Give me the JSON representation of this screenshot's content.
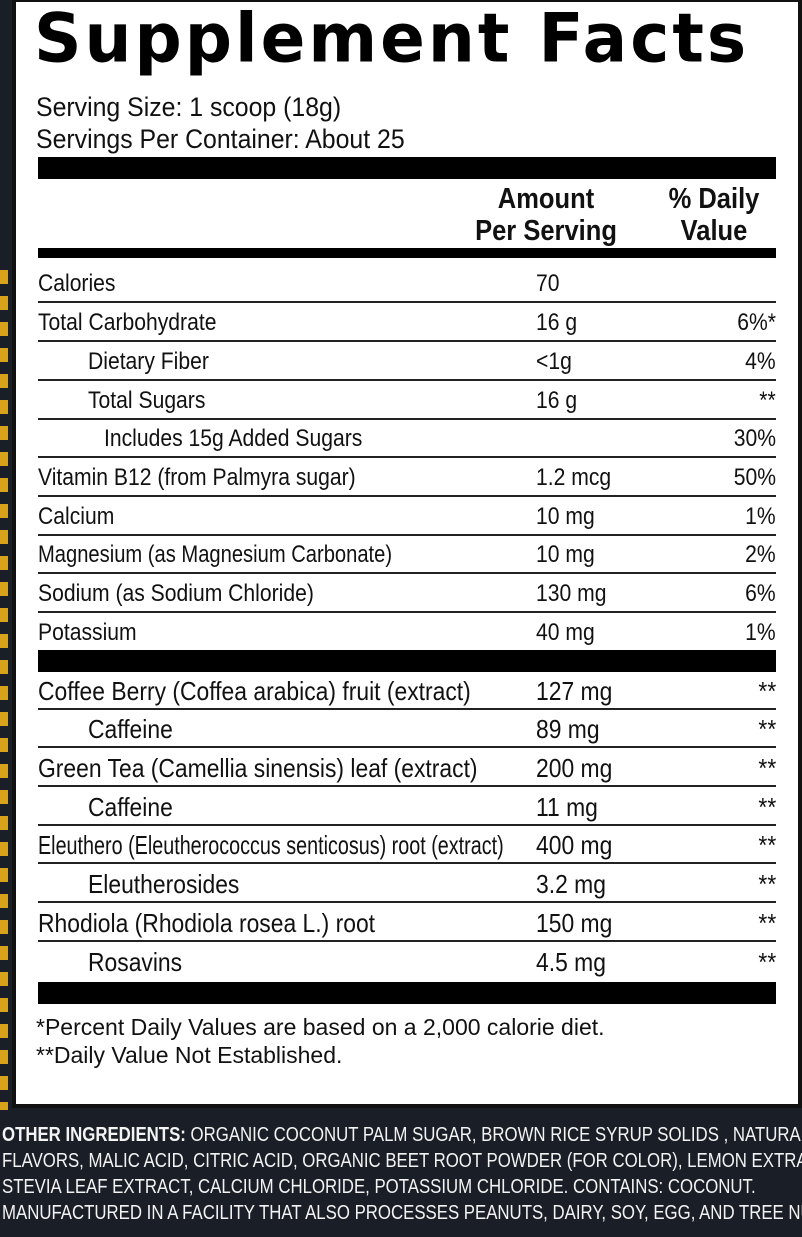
{
  "title": "Supplement Facts",
  "serving_size": "Serving Size: 1 scoop (18g)",
  "servings_per_container": "Servings Per Container: About 25",
  "header": {
    "amount_line1": "Amount",
    "amount_line2": "Per Serving",
    "dv_line1": "% Daily",
    "dv_line2": "Value"
  },
  "nutrients": [
    {
      "name": "Calories",
      "amount": "70",
      "dv": ""
    },
    {
      "name": "Total Carbohydrate",
      "amount": "16 g",
      "dv": "6%*"
    },
    {
      "name": "Dietary  Fiber",
      "amount": "<1g",
      "dv": "4%"
    },
    {
      "name": "Total Sugars",
      "amount": "16 g",
      "dv": "**"
    },
    {
      "name": "Includes 15g Added Sugars",
      "amount": "",
      "dv": "30%"
    },
    {
      "name": "Vitamin B12 (from Palmyra sugar)",
      "amount": "1.2 mcg",
      "dv": "50%"
    },
    {
      "name": "Calcium",
      "amount": "10 mg",
      "dv": "1%"
    },
    {
      "name": "Magnesium (as Magnesium Carbonate)",
      "amount": "10 mg",
      "dv": "2%"
    },
    {
      "name": "Sodium  (as Sodium Chloride)",
      "amount": "130 mg",
      "dv": "6%"
    },
    {
      "name": "Potassium",
      "amount": "40 mg",
      "dv": "1%"
    }
  ],
  "botanicals": [
    {
      "name": "Coffee Berry (Coffea arabica) fruit (extract)",
      "amount": "127 mg",
      "dv": "**"
    },
    {
      "name": "Caffeine",
      "amount": "89 mg",
      "dv": "**"
    },
    {
      "name": "Green Tea (Camellia sinensis) leaf (extract)",
      "amount": "200 mg",
      "dv": "**"
    },
    {
      "name": "Caffeine",
      "amount": "11 mg",
      "dv": "**"
    },
    {
      "name": "Eleuthero (Eleutherococcus senticosus) root (extract)",
      "amount": "400 mg",
      "dv": "**"
    },
    {
      "name": "Eleutherosides",
      "amount": "3.2 mg",
      "dv": "**"
    },
    {
      "name": "Rhodiola (Rhodiola rosea L.) root",
      "amount": "150 mg",
      "dv": "**"
    },
    {
      "name": "Rosavins",
      "amount": "4.5 mg",
      "dv": "**"
    }
  ],
  "footnote1": "*Percent Daily Values are based on a 2,000 calorie diet.",
  "footnote2": "**Daily Value Not Established.",
  "other_ingredients": {
    "label": "OTHER INGREDIENTS:",
    "line1": " ORGANIC COCONUT PALM SUGAR, BROWN RICE SYRUP SOLIDS , NATURAL",
    "line2": "FLAVORS, MALIC ACID,  CITRIC ACID, ORGANIC BEET ROOT POWDER (FOR COLOR), LEMON EXTRACT,",
    "line3": "STEVIA LEAF EXTRACT, CALCIUM CHLORIDE, POTASSIUM CHLORIDE. CONTAINS: COCONUT.",
    "line4": "MANUFACTURED IN A FACILITY THAT ALSO PROCESSES PEANUTS, DAIRY, SOY, EGG, AND TREE NUTS."
  },
  "colors": {
    "background": "#1a1f27",
    "stripe": "#d9a21b",
    "panel": "#ffffff"
  }
}
